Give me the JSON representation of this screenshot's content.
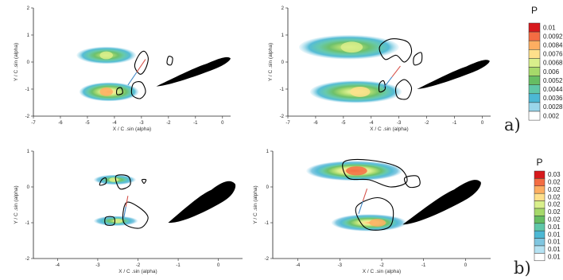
{
  "chart_data": [
    {
      "type": "heatmap",
      "row": "a",
      "column": "left",
      "xlabel": "X / C .sin (alpha)",
      "ylabel": "Y / C .sin (alpha)",
      "xlim": [
        -7,
        0.3
      ],
      "ylim": [
        -2,
        2
      ],
      "xticks": [
        -7,
        -6,
        -5,
        -4,
        -3,
        -2,
        -1,
        0
      ],
      "yticks": [
        -2,
        -1,
        0,
        1,
        2
      ],
      "xtick_labels": [
        "-7",
        "-6",
        "-5",
        "-4",
        "-3",
        "-2",
        "-1",
        "0"
      ],
      "ytick_labels": [
        "-2",
        "-1",
        "0",
        "1",
        "2"
      ],
      "blobs": [
        {
          "x0": -5.4,
          "x1": -3.2,
          "y": 0.25,
          "hw": 0.32,
          "peak": 0.0068,
          "px": -4.3
        },
        {
          "x0": -5.3,
          "x1": -3.1,
          "y": -1.1,
          "hw": 0.35,
          "peak": 0.0084,
          "px": -4.3
        }
      ],
      "contours": [
        [
          [
            -3.1,
            0.25
          ],
          [
            -2.9,
            0.4
          ],
          [
            -2.75,
            0.15
          ],
          [
            -2.85,
            -0.25
          ],
          [
            -3.05,
            -0.45
          ],
          [
            -3.25,
            -0.15
          ]
        ],
        [
          [
            -3.3,
            -0.8
          ],
          [
            -3.0,
            -0.75
          ],
          [
            -2.85,
            -1.1
          ],
          [
            -3.05,
            -1.35
          ],
          [
            -3.35,
            -1.2
          ]
        ],
        [
          [
            -3.9,
            -1.0
          ],
          [
            -3.75,
            -0.95
          ],
          [
            -3.7,
            -1.15
          ],
          [
            -3.9,
            -1.2
          ]
        ],
        [
          [
            -2.0,
            0.2
          ],
          [
            -1.85,
            0.15
          ],
          [
            -1.9,
            -0.1
          ],
          [
            -2.05,
            -0.05
          ]
        ]
      ],
      "vortex_link": [
        [
          -3.5,
          -0.85
        ],
        [
          -2.85,
          0.1
        ]
      ],
      "airfoil": {
        "le_x": -2.45,
        "le_y": -0.9,
        "te_x": 0.28,
        "te_y": 0.15,
        "thickness": 0.32
      }
    },
    {
      "type": "heatmap",
      "row": "a",
      "column": "right",
      "xlabel": "X / C .sin (alpha)",
      "ylabel": "Y / C .sin (alpha)",
      "xlim": [
        -7,
        0.3
      ],
      "ylim": [
        -2,
        2
      ],
      "xticks": [
        -7,
        -6,
        -5,
        -4,
        -3,
        -2,
        -1,
        0
      ],
      "yticks": [
        -2,
        -1,
        0,
        1,
        2
      ],
      "xtick_labels": [
        "-7",
        "-6",
        "-5",
        "-4",
        "-3",
        "-2",
        "-1",
        "0"
      ],
      "ytick_labels": [
        "-2",
        "-1",
        "0",
        "1",
        "2"
      ],
      "blobs": [
        {
          "x0": -6.6,
          "x1": -3.0,
          "y": 0.55,
          "hw": 0.45,
          "peak": 0.0068,
          "px": -4.7
        },
        {
          "x0": -6.2,
          "x1": -2.9,
          "y": -1.1,
          "hw": 0.42,
          "peak": 0.0076,
          "px": -4.4
        }
      ],
      "contours": [
        [
          [
            -3.7,
            0.55
          ],
          [
            -3.3,
            0.85
          ],
          [
            -2.7,
            0.75
          ],
          [
            -2.55,
            0.35
          ],
          [
            -2.8,
            0.0
          ],
          [
            -3.1,
            0.25
          ],
          [
            -3.5,
            0.1
          ]
        ],
        [
          [
            -3.1,
            -0.9
          ],
          [
            -2.8,
            -0.65
          ],
          [
            -2.55,
            -0.95
          ],
          [
            -2.7,
            -1.35
          ],
          [
            -3.05,
            -1.3
          ]
        ],
        [
          [
            -3.7,
            -0.8
          ],
          [
            -3.55,
            -0.7
          ],
          [
            -3.5,
            -1.0
          ],
          [
            -3.7,
            -1.1
          ]
        ],
        [
          [
            -2.45,
            0.2
          ],
          [
            -2.2,
            0.35
          ],
          [
            -2.2,
            0.0
          ],
          [
            -2.45,
            -0.1
          ]
        ]
      ],
      "vortex_link": [
        [
          -3.55,
          -0.95
        ],
        [
          -2.95,
          -0.15
        ]
      ],
      "airfoil": {
        "le_x": -2.35,
        "le_y": -1.0,
        "te_x": 0.25,
        "te_y": 0.05,
        "thickness": 0.32
      }
    },
    {
      "type": "heatmap",
      "row": "b",
      "column": "left",
      "xlabel": "X / C .sin (alpha)",
      "ylabel": "Y / C .sin (alpha)",
      "xlim": [
        -4.6,
        0.6
      ],
      "ylim": [
        -2,
        1
      ],
      "xticks": [
        -4,
        -3,
        -2,
        -1,
        0
      ],
      "yticks": [
        -2,
        -1,
        0,
        1
      ],
      "xtick_labels": [
        "-4",
        "-3",
        "-2",
        "-1",
        "0"
      ],
      "ytick_labels": [
        "-2",
        "-1",
        "0",
        "1"
      ],
      "blobs": [
        {
          "x0": -3.1,
          "x1": -2.05,
          "y": 0.2,
          "hw": 0.14,
          "peak": 0.02,
          "px": -2.6
        },
        {
          "x0": -3.1,
          "x1": -2.0,
          "y": -0.95,
          "hw": 0.14,
          "peak": 0.02,
          "px": -2.5
        }
      ],
      "contours": [
        [
          [
            -2.55,
            0.3
          ],
          [
            -2.25,
            0.3
          ],
          [
            -2.2,
            0.05
          ],
          [
            -2.45,
            -0.05
          ]
        ],
        [
          [
            -2.3,
            -0.45
          ],
          [
            -2.0,
            -0.55
          ],
          [
            -1.75,
            -0.85
          ],
          [
            -1.95,
            -1.15
          ],
          [
            -2.35,
            -1.0
          ]
        ],
        [
          [
            -2.8,
            -0.85
          ],
          [
            -2.6,
            -0.85
          ],
          [
            -2.6,
            -1.05
          ],
          [
            -2.8,
            -1.05
          ]
        ],
        [
          [
            -2.9,
            0.2
          ],
          [
            -2.8,
            0.25
          ],
          [
            -2.8,
            0.1
          ],
          [
            -2.95,
            0.05
          ]
        ],
        [
          [
            -1.9,
            0.2
          ],
          [
            -1.8,
            0.2
          ],
          [
            -1.85,
            0.1
          ]
        ]
      ],
      "vortex_link": [
        [
          -2.35,
          -0.85
        ],
        [
          -2.25,
          -0.25
        ]
      ],
      "airfoil": {
        "le_x": -1.25,
        "le_y": -1.0,
        "te_x": 0.4,
        "te_y": 0.1,
        "thickness": 0.5
      }
    },
    {
      "type": "heatmap",
      "row": "b",
      "column": "right",
      "xlabel": "X / C .sin (alpha)",
      "ylabel": "Y / C .sin (alpha)",
      "xlim": [
        -4.6,
        0.6
      ],
      "ylim": [
        -2,
        1
      ],
      "xticks": [
        -4,
        -3,
        -2,
        -1,
        0
      ],
      "yticks": [
        -2,
        -1,
        0,
        1
      ],
      "xtick_labels": [
        "-4",
        "-3",
        "-2",
        "-1",
        "0"
      ],
      "ytick_labels": [
        "-2",
        "-1",
        "0",
        "1"
      ],
      "blobs": [
        {
          "x0": -3.8,
          "x1": -1.5,
          "y": 0.45,
          "hw": 0.28,
          "peak": 0.028,
          "px": -2.6
        },
        {
          "x0": -3.2,
          "x1": -1.4,
          "y": -1.0,
          "hw": 0.24,
          "peak": 0.026,
          "px": -2.1
        }
      ],
      "contours": [
        [
          [
            -2.9,
            0.7
          ],
          [
            -2.3,
            0.75
          ],
          [
            -1.6,
            0.55
          ],
          [
            -1.4,
            0.15
          ],
          [
            -1.8,
            0.0
          ],
          [
            -2.3,
            0.2
          ],
          [
            -2.8,
            0.25
          ]
        ],
        [
          [
            -2.6,
            -0.55
          ],
          [
            -2.1,
            -0.3
          ],
          [
            -1.75,
            -0.55
          ],
          [
            -1.8,
            -1.1
          ],
          [
            -2.25,
            -1.2
          ],
          [
            -2.5,
            -1.0
          ]
        ],
        [
          [
            -1.45,
            0.25
          ],
          [
            -1.15,
            0.3
          ],
          [
            -1.1,
            0.05
          ],
          [
            -1.35,
            0.0
          ]
        ]
      ],
      "vortex_link": [
        [
          -2.55,
          -0.75
        ],
        [
          -2.35,
          -0.05
        ]
      ],
      "airfoil": {
        "le_x": -1.5,
        "le_y": -1.05,
        "te_x": 0.35,
        "te_y": 0.15,
        "thickness": 0.45
      }
    }
  ],
  "legends": [
    {
      "title": "P",
      "labels": [
        "0.01",
        "0.0092",
        "0.0084",
        "0.0076",
        "0.0068",
        "0.006",
        "0.0052",
        "0.0044",
        "0.0036",
        "0.0028",
        "0.002"
      ],
      "colors": [
        "#d7191c",
        "#f46d43",
        "#fdae61",
        "#fee08b",
        "#d9ef8b",
        "#a6d96a",
        "#66bd63",
        "#5fc7a8",
        "#4cb8d4",
        "#9ad6ea",
        "#ffffff"
      ],
      "min": 0.002,
      "max": 0.01
    },
    {
      "title": "P",
      "labels": [
        "0.03",
        "0.02",
        "0.02",
        "0.02",
        "0.02",
        "0.02",
        "0.02",
        "0.01",
        "0.01",
        "0.01",
        "0.01",
        "0.01"
      ],
      "colors": [
        "#d7191c",
        "#f46d43",
        "#fdae61",
        "#fee08b",
        "#d9ef8b",
        "#a6d96a",
        "#66bd63",
        "#5fc7a8",
        "#4cb8d4",
        "#7fc6e0",
        "#b5e2f2",
        "#ffffff"
      ],
      "min": 0.005,
      "max": 0.03
    }
  ],
  "panel_tags": [
    "a)",
    "b)"
  ],
  "colors": {
    "vortex_link_positive": "#d6524a",
    "vortex_link_negative": "#3f86c4"
  }
}
